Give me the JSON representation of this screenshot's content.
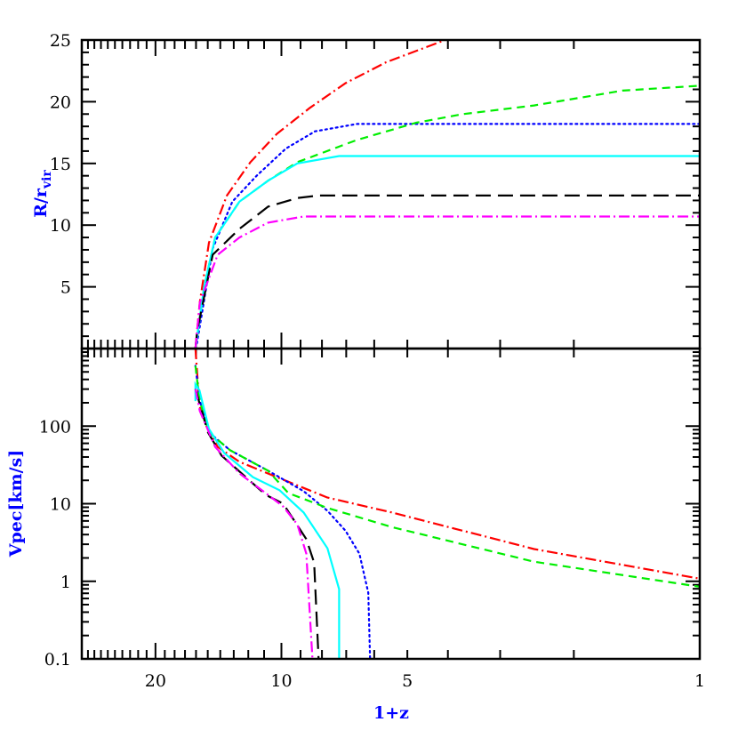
{
  "chart_data": [
    {
      "type": "line",
      "panel": "top",
      "xlabel": "1+z",
      "ylabel": "R/r",
      "ylabel_sub": "vir",
      "x_scale": "log",
      "x_reversed": true,
      "xlim": [
        30,
        1
      ],
      "ylim": [
        0,
        25
      ],
      "yticks": [
        5,
        10,
        15,
        20,
        25
      ],
      "grid": false,
      "series": [
        {
          "color": "#ff0000",
          "style": "dash-dot",
          "points": [
            [
              16.05,
              0
            ],
            [
              15.67,
              3.75
            ],
            [
              14.9,
              8.57
            ],
            [
              13.5,
              12.4
            ],
            [
              11.86,
              15.1
            ],
            [
              10.25,
              17.4
            ],
            [
              8.55,
              19.5
            ],
            [
              7.03,
              21.5
            ],
            [
              5.62,
              23.2
            ],
            [
              4.06,
              25
            ]
          ]
        },
        {
          "color": "#0000ff",
          "style": "dotted",
          "points": [
            [
              16.05,
              0
            ],
            [
              15.9,
              0.5
            ],
            [
              14.6,
              8.1
            ],
            [
              13.1,
              11.9
            ],
            [
              11.46,
              14.0
            ],
            [
              9.76,
              16.2
            ],
            [
              8.31,
              17.6
            ],
            [
              6.6,
              18.2
            ],
            [
              1,
              18.2
            ]
          ]
        },
        {
          "color": "#00ee00",
          "style": "dashed",
          "points": [
            [
              16.05,
              0
            ],
            [
              15.3,
              5.0
            ],
            [
              14.4,
              9.0
            ],
            [
              12.6,
              11.9
            ],
            [
              10.76,
              13.6
            ],
            [
              9.16,
              15.1
            ],
            [
              6.6,
              16.9
            ],
            [
              4.76,
              18.3
            ],
            [
              3.68,
              19.0
            ],
            [
              2.49,
              19.7
            ],
            [
              1.53,
              20.9
            ],
            [
              1,
              21.3
            ]
          ]
        },
        {
          "color": "#00ffff",
          "style": "solid",
          "points": [
            [
              16.05,
              0
            ],
            [
              15.3,
              5.0
            ],
            [
              14.4,
              9.0
            ],
            [
              12.6,
              11.9
            ],
            [
              10.76,
              13.6
            ],
            [
              9.16,
              15.0
            ],
            [
              7.28,
              15.6
            ],
            [
              1,
              15.6
            ]
          ]
        },
        {
          "color": "#000000",
          "style": "long-dash",
          "points": [
            [
              16.05,
              0
            ],
            [
              15.9,
              1.4
            ],
            [
              14.6,
              7.6
            ],
            [
              12.6,
              9.7
            ],
            [
              10.76,
              11.5
            ],
            [
              9.16,
              12.2
            ],
            [
              8.15,
              12.4
            ],
            [
              1,
              12.4
            ]
          ]
        },
        {
          "color": "#ff00ff",
          "style": "dash-dot",
          "points": [
            [
              16.05,
              0
            ],
            [
              15.67,
              3.7
            ],
            [
              14.2,
              7.6
            ],
            [
              12.6,
              9.0
            ],
            [
              10.76,
              10.2
            ],
            [
              8.85,
              10.7
            ],
            [
              1,
              10.7
            ]
          ]
        }
      ]
    },
    {
      "type": "line",
      "panel": "bottom",
      "xlabel": "1+z",
      "ylabel": "Vpec[km/s]",
      "x_scale": "log",
      "x_reversed": true,
      "y_scale": "log",
      "xlim": [
        30,
        1
      ],
      "ylim": [
        0.1,
        1000
      ],
      "xticks": [
        20,
        10,
        5,
        1
      ],
      "yticks": [
        0.1,
        1,
        10,
        100
      ],
      "grid": false,
      "series": [
        {
          "color": "#ff0000",
          "style": "dash-dot",
          "points": [
            [
              16.05,
              1000
            ],
            [
              15.9,
              490
            ],
            [
              15.7,
              183
            ],
            [
              15.1,
              100
            ],
            [
              14.2,
              54
            ],
            [
              12.6,
              34.7
            ],
            [
              10.25,
              22
            ],
            [
              7.76,
              12
            ],
            [
              5.44,
              7.7
            ],
            [
              2.49,
              2.6
            ],
            [
              1,
              1.08
            ]
          ]
        },
        {
          "color": "#0000ff",
          "style": "dotted",
          "points": [
            [
              16.05,
              600
            ],
            [
              15.7,
              220
            ],
            [
              14.9,
              83
            ],
            [
              13.27,
              49
            ],
            [
              10.76,
              26.6
            ],
            [
              8.85,
              14.5
            ],
            [
              7.76,
              8.1
            ],
            [
              7.03,
              4.5
            ],
            [
              6.51,
              2.27
            ],
            [
              6.2,
              0.71
            ],
            [
              6.14,
              0.1
            ]
          ]
        },
        {
          "color": "#00ee00",
          "style": "dashed",
          "points": [
            [
              16.05,
              600
            ],
            [
              15.7,
              220
            ],
            [
              14.9,
              83
            ],
            [
              13.27,
              49
            ],
            [
              10.76,
              26.6
            ],
            [
              9.62,
              13.7
            ],
            [
              7.76,
              8.8
            ],
            [
              5.44,
              5.0
            ],
            [
              2.49,
              1.79
            ],
            [
              1,
              0.85
            ]
          ]
        },
        {
          "color": "#00ffff",
          "style": "solid",
          "points": [
            [
              16.05,
              210
            ],
            [
              16.05,
              347
            ],
            [
              15.7,
              290
            ],
            [
              14.9,
              92
            ],
            [
              13.7,
              45
            ],
            [
              11.7,
              22
            ],
            [
              10.1,
              14.9
            ],
            [
              8.85,
              7.7
            ],
            [
              7.76,
              2.66
            ],
            [
              7.28,
              0.79
            ],
            [
              7.28,
              0.1
            ]
          ]
        },
        {
          "color": "#000000",
          "style": "long-dash",
          "points": [
            [
              16.05,
              300
            ],
            [
              14.98,
              83
            ],
            [
              13.9,
              41.7
            ],
            [
              10.9,
              13
            ],
            [
              9.9,
              10
            ],
            [
              8.72,
              3.5
            ],
            [
              8.35,
              1.74
            ],
            [
              8.15,
              0.1
            ]
          ]
        },
        {
          "color": "#ff00ff",
          "style": "dash-dot",
          "points": [
            [
              16.05,
              300
            ],
            [
              15.67,
              157
            ],
            [
              14.4,
              54
            ],
            [
              12.6,
              24.6
            ],
            [
              10.76,
              13
            ],
            [
              9.9,
              9.2
            ],
            [
              9.16,
              5.4
            ],
            [
              8.72,
              2.27
            ],
            [
              8.43,
              0.1
            ]
          ]
        }
      ]
    }
  ],
  "colors": {
    "axis_label": "#0000ff",
    "frame": "#000000"
  }
}
